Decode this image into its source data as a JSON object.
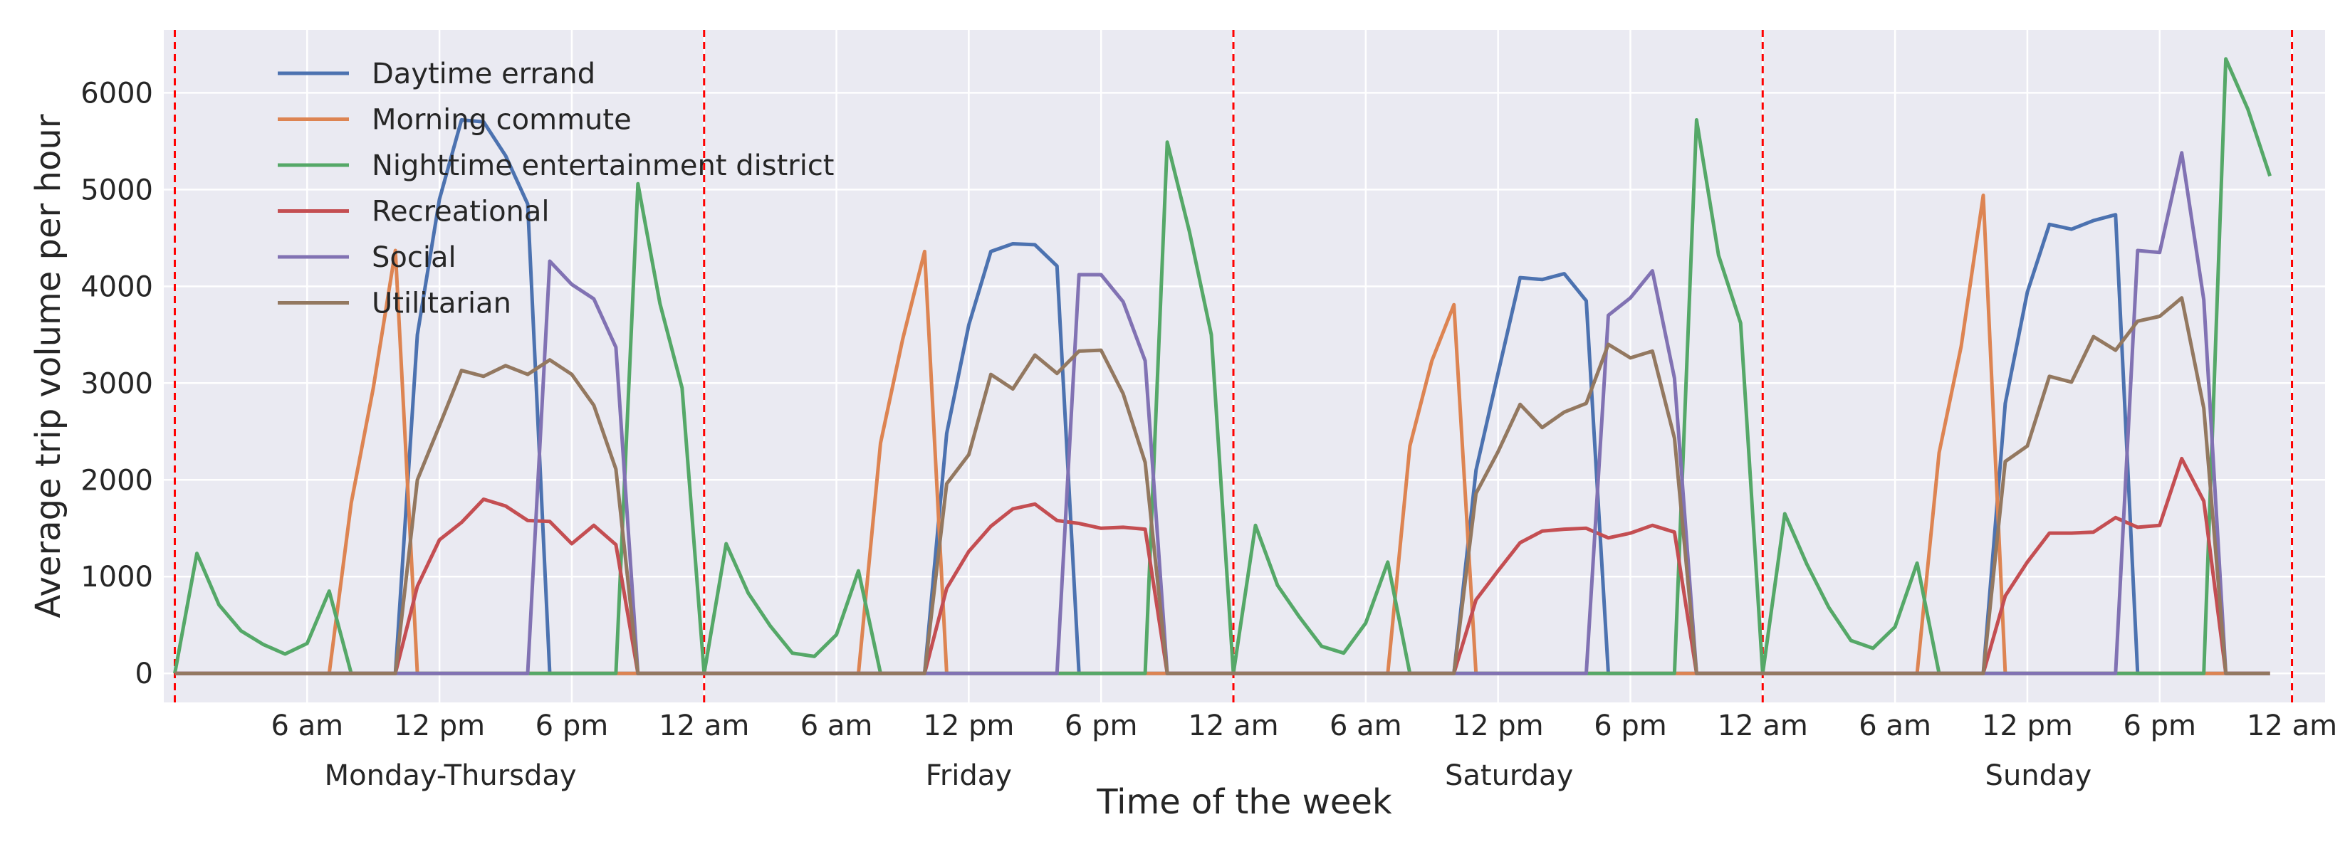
{
  "chart_data": {
    "type": "line",
    "xlabel": "Time of the week",
    "ylabel": "Average trip volume per hour",
    "ylim": [
      -300,
      6650
    ],
    "xlim": [
      -0.5,
      97.5
    ],
    "grid": true,
    "legend_position": "top-left",
    "background_color": "#eaeaf2",
    "grid_color": "#ffffff",
    "day_separator_color": "#ff0000",
    "y_ticks": [
      0,
      1000,
      2000,
      3000,
      4000,
      5000,
      6000
    ],
    "y_tick_labels": [
      "0",
      "1000",
      "2000",
      "3000",
      "4000",
      "5000",
      "6000"
    ],
    "x_ticks": [
      6,
      12,
      18,
      24,
      30,
      36,
      42,
      48,
      54,
      60,
      66,
      72,
      78,
      84,
      90,
      96
    ],
    "x_tick_labels": [
      "6 am",
      "12 pm",
      "6 pm",
      "12 am",
      "6 am",
      "12 pm",
      "6 pm",
      "12 am",
      "6 am",
      "12 pm",
      "6 pm",
      "12 am",
      "6 am",
      "12 pm",
      "6 pm",
      "12 am"
    ],
    "day_separators": [
      0,
      24,
      48,
      72,
      96
    ],
    "day_labels": [
      {
        "label": "Monday-Thursday",
        "x": 12.5
      },
      {
        "label": "Friday",
        "x": 36
      },
      {
        "label": "Saturday",
        "x": 60.5
      },
      {
        "label": "Sunday",
        "x": 84.5
      }
    ],
    "series": [
      {
        "name": "Daytime errand",
        "color": "#4c72b0",
        "values": [
          0,
          0,
          0,
          0,
          0,
          0,
          0,
          0,
          0,
          0,
          0,
          3500,
          4900,
          5720,
          5700,
          5350,
          4850,
          0,
          0,
          0,
          0,
          0,
          0,
          0,
          0,
          0,
          0,
          0,
          0,
          0,
          0,
          0,
          0,
          0,
          0,
          2480,
          3600,
          4360,
          4440,
          4430,
          4210,
          0,
          0,
          0,
          0,
          0,
          0,
          0,
          0,
          0,
          0,
          0,
          0,
          0,
          0,
          0,
          0,
          0,
          0,
          2100,
          3100,
          4090,
          4070,
          4130,
          3850,
          0,
          0,
          0,
          0,
          0,
          0,
          0,
          0,
          0,
          0,
          0,
          0,
          0,
          0,
          0,
          0,
          0,
          0,
          2790,
          3940,
          4640,
          4590,
          4680,
          4740,
          0,
          0,
          0,
          0,
          0,
          0,
          0
        ]
      },
      {
        "name": "Morning commute",
        "color": "#dd8452",
        "values": [
          0,
          0,
          0,
          0,
          0,
          0,
          0,
          0,
          1760,
          2950,
          4370,
          0,
          0,
          0,
          0,
          0,
          0,
          0,
          0,
          0,
          0,
          0,
          0,
          0,
          0,
          0,
          0,
          0,
          0,
          0,
          0,
          0,
          2380,
          3450,
          4360,
          0,
          0,
          0,
          0,
          0,
          0,
          0,
          0,
          0,
          0,
          0,
          0,
          0,
          0,
          0,
          0,
          0,
          0,
          0,
          0,
          0,
          2350,
          3230,
          3810,
          0,
          0,
          0,
          0,
          0,
          0,
          0,
          0,
          0,
          0,
          0,
          0,
          0,
          0,
          0,
          0,
          0,
          0,
          0,
          0,
          0,
          2280,
          3380,
          4940,
          0,
          0,
          0,
          0,
          0,
          0,
          0,
          0,
          0,
          0,
          0,
          0,
          0
        ]
      },
      {
        "name": "Nighttime entertainment district",
        "color": "#55a868",
        "values": [
          0,
          1240,
          710,
          440,
          300,
          200,
          310,
          850,
          0,
          0,
          0,
          0,
          0,
          0,
          0,
          0,
          0,
          0,
          0,
          0,
          0,
          5060,
          3820,
          2950,
          0,
          1340,
          830,
          490,
          210,
          175,
          400,
          1060,
          0,
          0,
          0,
          0,
          0,
          0,
          0,
          0,
          0,
          0,
          0,
          0,
          0,
          5490,
          4570,
          3500,
          0,
          1530,
          910,
          580,
          280,
          210,
          520,
          1150,
          0,
          0,
          0,
          0,
          0,
          0,
          0,
          0,
          0,
          0,
          0,
          0,
          0,
          5720,
          4320,
          3620,
          0,
          1650,
          1130,
          680,
          340,
          260,
          480,
          1140,
          0,
          0,
          0,
          0,
          0,
          0,
          0,
          0,
          0,
          0,
          0,
          0,
          0,
          6350,
          5830,
          5140
        ]
      },
      {
        "name": "Recreational",
        "color": "#c44e52",
        "values": [
          0,
          0,
          0,
          0,
          0,
          0,
          0,
          0,
          0,
          0,
          0,
          900,
          1380,
          1560,
          1800,
          1730,
          1580,
          1570,
          1340,
          1530,
          1330,
          0,
          0,
          0,
          0,
          0,
          0,
          0,
          0,
          0,
          0,
          0,
          0,
          0,
          0,
          880,
          1260,
          1520,
          1700,
          1750,
          1580,
          1550,
          1500,
          1510,
          1490,
          0,
          0,
          0,
          0,
          0,
          0,
          0,
          0,
          0,
          0,
          0,
          0,
          0,
          0,
          760,
          1060,
          1350,
          1470,
          1490,
          1500,
          1400,
          1450,
          1530,
          1460,
          0,
          0,
          0,
          0,
          0,
          0,
          0,
          0,
          0,
          0,
          0,
          0,
          0,
          0,
          800,
          1150,
          1450,
          1450,
          1460,
          1610,
          1510,
          1530,
          2220,
          1780,
          0,
          0,
          0
        ]
      },
      {
        "name": "Social",
        "color": "#8172b3",
        "values": [
          0,
          0,
          0,
          0,
          0,
          0,
          0,
          0,
          0,
          0,
          0,
          0,
          0,
          0,
          0,
          0,
          0,
          4260,
          4020,
          3870,
          3370,
          0,
          0,
          0,
          0,
          0,
          0,
          0,
          0,
          0,
          0,
          0,
          0,
          0,
          0,
          0,
          0,
          0,
          0,
          0,
          0,
          4120,
          4120,
          3840,
          3230,
          0,
          0,
          0,
          0,
          0,
          0,
          0,
          0,
          0,
          0,
          0,
          0,
          0,
          0,
          0,
          0,
          0,
          0,
          0,
          0,
          3700,
          3880,
          4160,
          3050,
          0,
          0,
          0,
          0,
          0,
          0,
          0,
          0,
          0,
          0,
          0,
          0,
          0,
          0,
          0,
          0,
          0,
          0,
          0,
          0,
          4370,
          4350,
          5380,
          3860,
          0,
          0,
          0
        ]
      },
      {
        "name": "Utilitarian",
        "color": "#937860",
        "values": [
          0,
          0,
          0,
          0,
          0,
          0,
          0,
          0,
          0,
          0,
          0,
          2000,
          2560,
          3130,
          3070,
          3180,
          3090,
          3240,
          3090,
          2770,
          2110,
          0,
          0,
          0,
          0,
          0,
          0,
          0,
          0,
          0,
          0,
          0,
          0,
          0,
          0,
          1960,
          2260,
          3090,
          2940,
          3290,
          3100,
          3330,
          3340,
          2890,
          2180,
          0,
          0,
          0,
          0,
          0,
          0,
          0,
          0,
          0,
          0,
          0,
          0,
          0,
          0,
          1860,
          2290,
          2780,
          2540,
          2700,
          2790,
          3400,
          3260,
          3330,
          2430,
          0,
          0,
          0,
          0,
          0,
          0,
          0,
          0,
          0,
          0,
          0,
          0,
          0,
          0,
          2190,
          2350,
          3070,
          3010,
          3480,
          3340,
          3640,
          3690,
          3880,
          2740,
          0,
          0,
          0
        ]
      }
    ]
  }
}
